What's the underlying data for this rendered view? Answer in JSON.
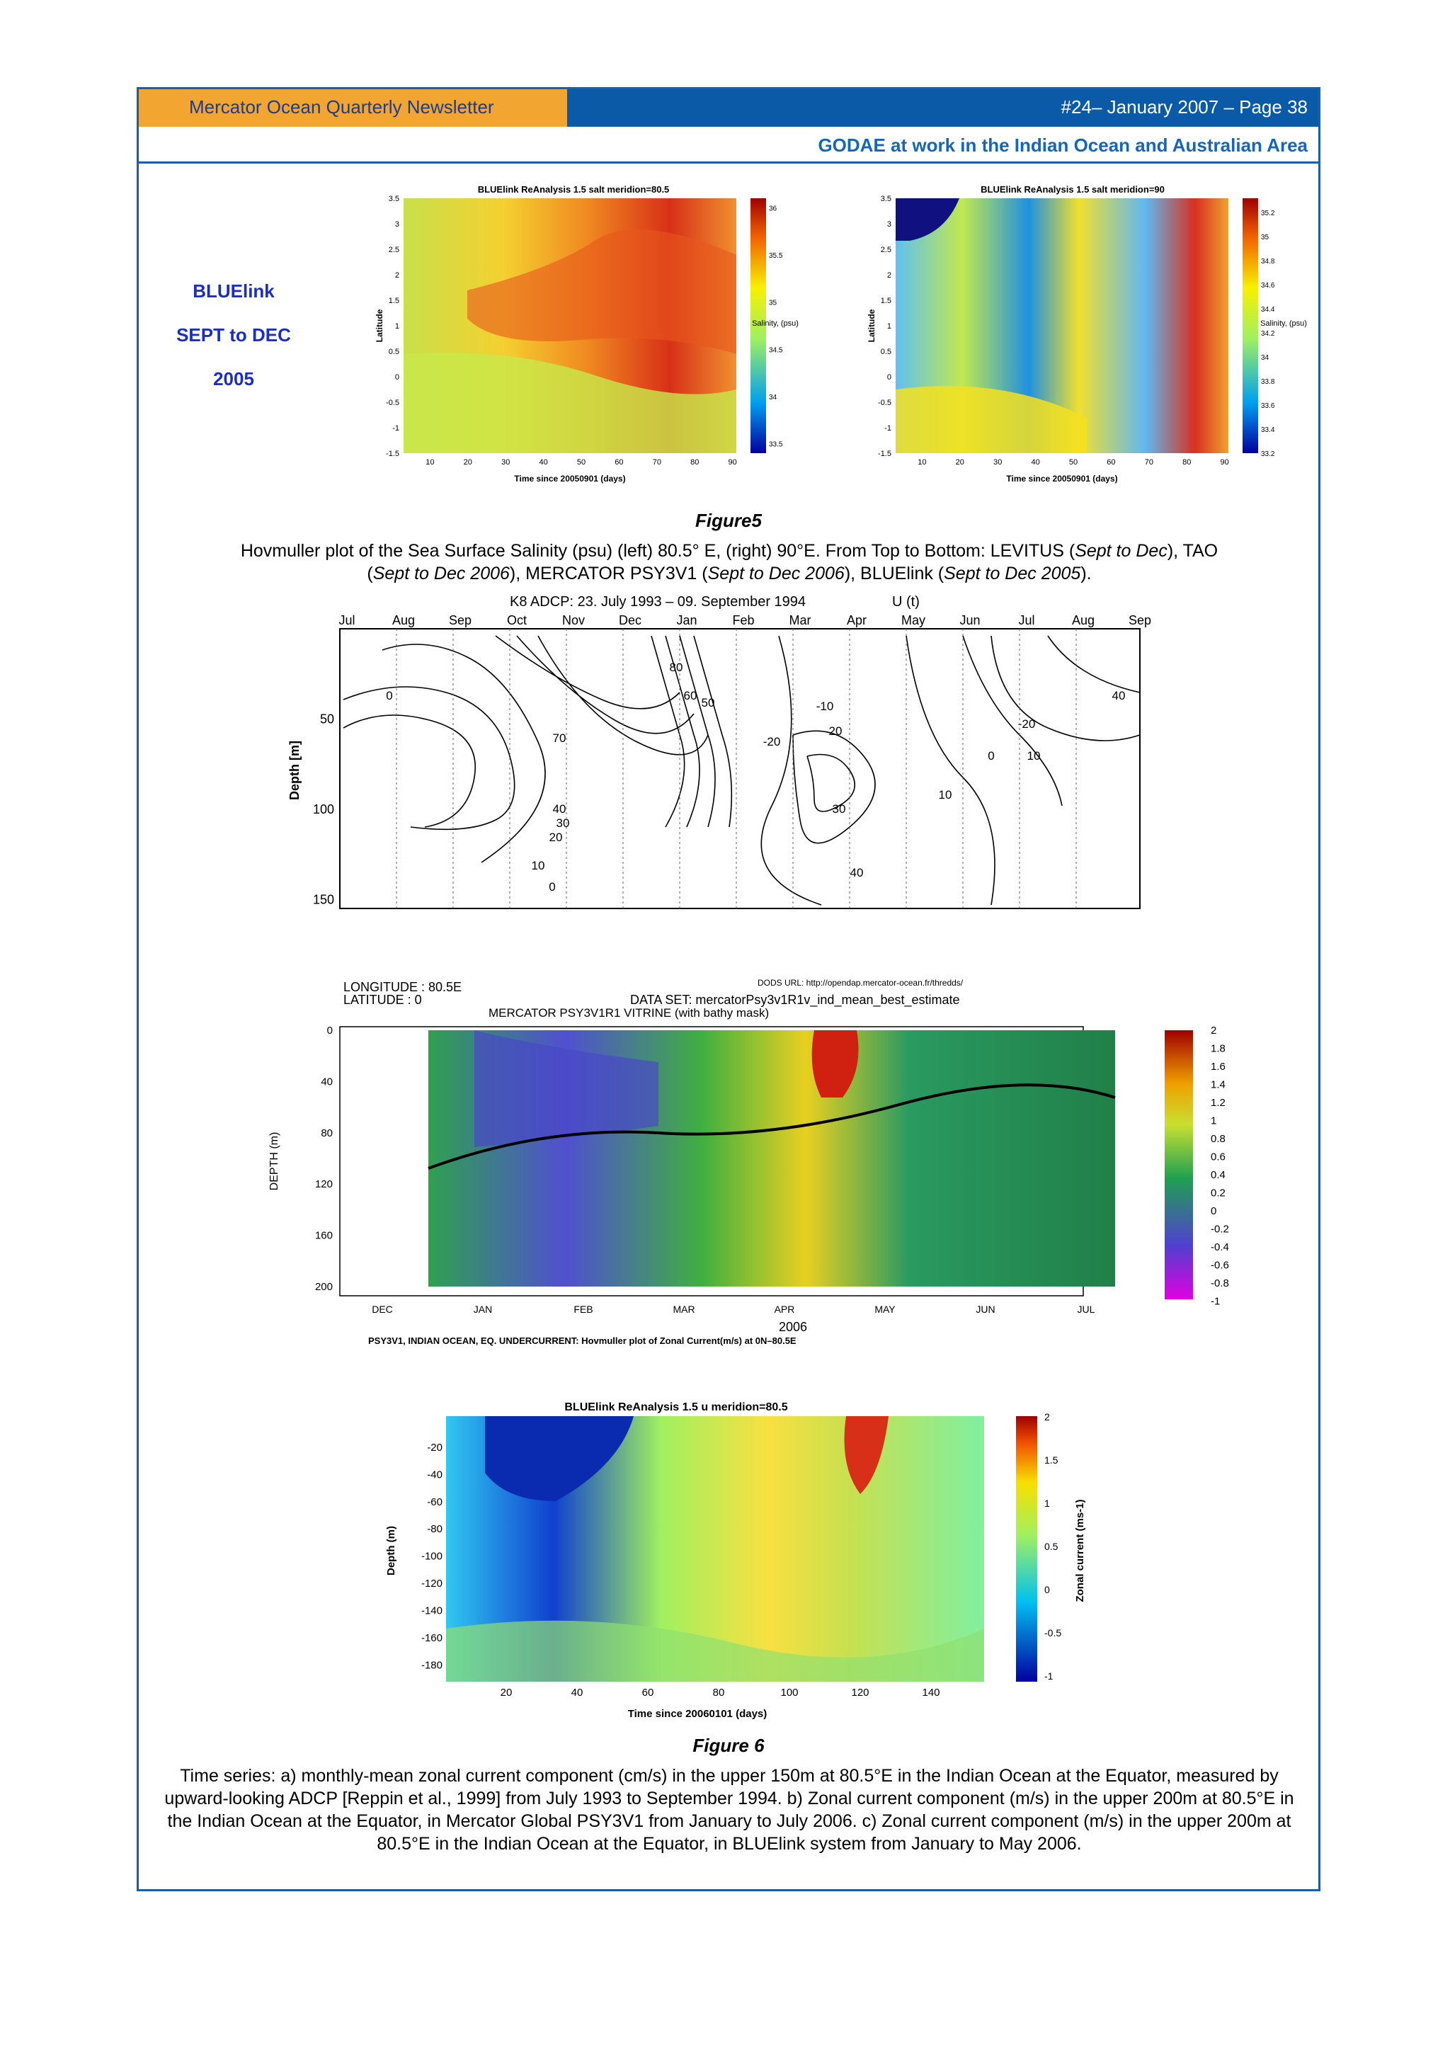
{
  "header": {
    "newsletter": "Mercator Ocean Quarterly Newsletter",
    "issue": "#24– January 2007 – Page 38",
    "section": "GODAE at work in the Indian Ocean and Australian Area"
  },
  "side_label": {
    "line1": "BLUElink",
    "line2": "SEPT to DEC",
    "line3": "2005"
  },
  "figure5": {
    "title": "Figure5",
    "caption_a": "Hovmuller plot of the Sea Surface Salinity (psu)   (left) 80.5° E, (right) 90°E. From Top to Bottom: LEVITUS (",
    "caption_a_it": "Sept to Dec",
    "caption_b": "), TAO",
    "caption_c": "(",
    "caption_c_it": "Sept to Dec 2006",
    "caption_d": "), MERCATOR PSY3V1 (",
    "caption_d_it": "Sept to Dec 2006",
    "caption_e": "), BLUElink (",
    "caption_e_it": "Sept to Dec 2005",
    "caption_f": ").",
    "left_plot": {
      "title": "BLUElink ReAnalysis 1.5 salt meridion=80.5",
      "ylabel": "Latitude",
      "xlabel": "Time since 20050901 (days)",
      "cbar_label": "Salinity, (psu)"
    },
    "right_plot": {
      "title": "BLUElink ReAnalysis 1.5 salt meridion=90",
      "ylabel": "Latitude",
      "xlabel": "Time since 20050901 (days)",
      "cbar_label": "Salinity, (psu)"
    }
  },
  "adcp": {
    "title": "K8   ADCP: 23. July 1993 – 09. September 1994",
    "var": "U (t)",
    "ylabel": "Depth [m]"
  },
  "mercator": {
    "lon": "LONGITUDE  :  80.5E",
    "lat": "LATITUDE  :  0",
    "dods": "DODS URL: http://opendap.mercator-ocean.fr/thredds/",
    "dataset": "DATA SET:  mercatorPsy3v1R1v_ind_mean_best_estimate",
    "vitrine": "MERCATOR PSY3V1R1 VITRINE (with bathy mask)",
    "ylabel": "DEPTH (m)",
    "year": "2006",
    "footer": "PSY3V1, INDIAN OCEAN, EQ. UNDERCURRENT: Hovmuller plot of Zonal Current(m/s) at 0N–80.5E"
  },
  "bluelink_u": {
    "title": "BLUElink ReAnalysis 1.5 u meridion=80.5",
    "ylabel": "Depth (m)",
    "xlabel": "Time since 20060101 (days)",
    "cbar_label": "Zonal current (ms-1)"
  },
  "figure6": {
    "title": "Figure 6",
    "caption": "Time series: a) monthly-mean zonal current component (cm/s) in the upper 150m at 80.5°E in the Indian Ocean at the Equator, measured by upward-looking ADCP [Reppin et al., 1999] from July 1993 to September 1994. b) Zonal current component (m/s) in the upper 200m at 80.5°E in the Indian Ocean at the Equator, in Mercator Global PSY3V1 from January to July 2006. c) Zonal current component (m/s) in the upper 200m at 80.5°E in the Indian Ocean at the Equator, in BLUElink system from January to May 2006."
  },
  "chart_data": [
    {
      "type": "heatmap",
      "title": "BLUElink ReAnalysis 1.5 salt meridion=80.5",
      "xlabel": "Time since 20050901 (days)",
      "ylabel": "Latitude",
      "x_ticks": [
        10,
        20,
        30,
        40,
        50,
        60,
        70,
        80,
        90
      ],
      "y_ticks": [
        -1.5,
        -1,
        -0.5,
        0,
        0.5,
        1,
        1.5,
        2,
        2.5,
        3,
        3.5
      ],
      "colorbar_ticks": [
        33.5,
        34,
        34.5,
        35,
        35.5,
        36
      ],
      "colorbar_label": "Salinity, (psu)"
    },
    {
      "type": "heatmap",
      "title": "BLUElink ReAnalysis 1.5 salt meridion=90",
      "xlabel": "Time since 20050901 (days)",
      "ylabel": "Latitude",
      "x_ticks": [
        10,
        20,
        30,
        40,
        50,
        60,
        70,
        80,
        90
      ],
      "y_ticks": [
        -1.5,
        -1,
        -0.5,
        0,
        0.5,
        1,
        1.5,
        2,
        2.5,
        3,
        3.5
      ],
      "colorbar_ticks": [
        33.2,
        33.4,
        33.6,
        33.8,
        34,
        34.2,
        34.4,
        34.6,
        34.8,
        35,
        35.2
      ],
      "colorbar_label": "Salinity, (psu)"
    },
    {
      "type": "line",
      "title": "K8   ADCP: 23. July 1993 – 09. September 1994",
      "ylabel": "Depth [m]",
      "months": [
        "Jul",
        "Aug",
        "Sep",
        "Oct",
        "Nov",
        "Dec",
        "Jan",
        "Feb",
        "Mar",
        "Apr",
        "May",
        "Jun",
        "Jul",
        "Aug",
        "Sep"
      ],
      "y_ticks": [
        50,
        100,
        150
      ],
      "contour_labels": [
        "0",
        "70",
        "40",
        "30",
        "20",
        "10",
        "0",
        "80",
        "60",
        "50",
        "-10",
        "-20",
        "20",
        "30",
        "40",
        "10",
        "0",
        "-20",
        "40",
        "10"
      ]
    },
    {
      "type": "heatmap",
      "title": "MERCATOR PSY3V1R1 VITRINE (with bathy mask)",
      "ylabel": "DEPTH (m)",
      "months": [
        "DEC",
        "JAN",
        "FEB",
        "MAR",
        "APR",
        "MAY",
        "JUN",
        "JUL"
      ],
      "y_ticks": [
        0,
        40,
        80,
        120,
        160,
        200
      ],
      "colorbar_ticks": [
        "2",
        "1.8",
        "1.6",
        "1.4",
        "1.2",
        "1",
        "0.8",
        "0.6",
        "0.4",
        "0.2",
        "0",
        "-0.2",
        "-0.4",
        "-0.6",
        "-0.8",
        "-1"
      ]
    },
    {
      "type": "heatmap",
      "title": "BLUElink ReAnalysis 1.5 u meridion=80.5",
      "xlabel": "Time since 20060101 (days)",
      "ylabel": "Depth (m)",
      "x_ticks": [
        20,
        40,
        60,
        80,
        100,
        120,
        140
      ],
      "y_ticks": [
        -20,
        -40,
        -60,
        -80,
        -100,
        -120,
        -140,
        -160,
        -180
      ],
      "colorbar_ticks": [
        "2",
        "1.5",
        "1",
        "0.5",
        "0",
        "-0.5",
        "-1"
      ],
      "colorbar_label": "Zonal current (ms-1)"
    }
  ]
}
